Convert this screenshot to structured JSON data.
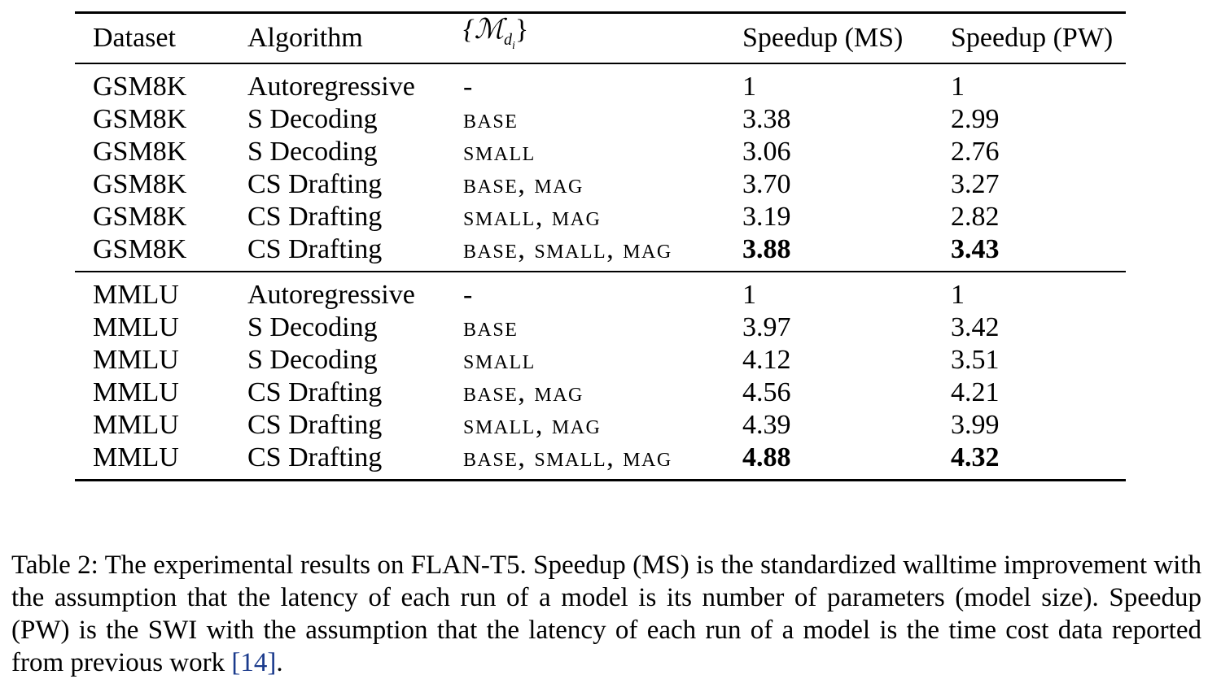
{
  "table": {
    "headers": {
      "dataset": "Dataset",
      "algorithm": "Algorithm",
      "models_base": "{ℳ",
      "models_sub": "d",
      "models_subsub": "i",
      "models_close": "}",
      "speedup_ms": "Speedup (MS)",
      "speedup_pw": "Speedup (PW)"
    },
    "groups": [
      {
        "rows": [
          {
            "dataset": "GSM8K",
            "algorithm": "Autoregressive",
            "models": "-",
            "ms": "1",
            "pw": "1"
          },
          {
            "dataset": "GSM8K",
            "algorithm": "S Decoding",
            "models": "base",
            "ms": "3.38",
            "pw": "2.99"
          },
          {
            "dataset": "GSM8K",
            "algorithm": "S Decoding",
            "models": "small",
            "ms": "3.06",
            "pw": "2.76"
          },
          {
            "dataset": "GSM8K",
            "algorithm": "CS Drafting",
            "models": "base, mag",
            "ms": "3.70",
            "pw": "3.27"
          },
          {
            "dataset": "GSM8K",
            "algorithm": "CS Drafting",
            "models": "small, mag",
            "ms": "3.19",
            "pw": "2.82"
          },
          {
            "dataset": "GSM8K",
            "algorithm": "CS Drafting",
            "models": "base, small, mag",
            "ms": "3.88",
            "pw": "3.43"
          }
        ]
      },
      {
        "rows": [
          {
            "dataset": "MMLU",
            "algorithm": "Autoregressive",
            "models": "-",
            "ms": "1",
            "pw": "1"
          },
          {
            "dataset": "MMLU",
            "algorithm": "S Decoding",
            "models": "base",
            "ms": "3.97",
            "pw": "3.42"
          },
          {
            "dataset": "MMLU",
            "algorithm": "S Decoding",
            "models": "small",
            "ms": "4.12",
            "pw": "3.51"
          },
          {
            "dataset": "MMLU",
            "algorithm": "CS Drafting",
            "models": "base, mag",
            "ms": "4.56",
            "pw": "4.21"
          },
          {
            "dataset": "MMLU",
            "algorithm": "CS Drafting",
            "models": "small, mag",
            "ms": "4.39",
            "pw": "3.99"
          },
          {
            "dataset": "MMLU",
            "algorithm": "CS Drafting",
            "models": "base, small, mag",
            "ms": "4.88",
            "pw": "4.32"
          }
        ]
      }
    ]
  },
  "caption": {
    "text_before_cite": "Table 2: The experimental results on FLAN-T5. Speedup (MS) is the standardized walltime improvement with the assumption that the latency of each run of a model is its number of parameters (model size). Speedup (PW) is the SWI with the assumption that the latency of each run of a model is the time cost data reported from previous work ",
    "cite": "[14]",
    "text_after_cite": "."
  }
}
